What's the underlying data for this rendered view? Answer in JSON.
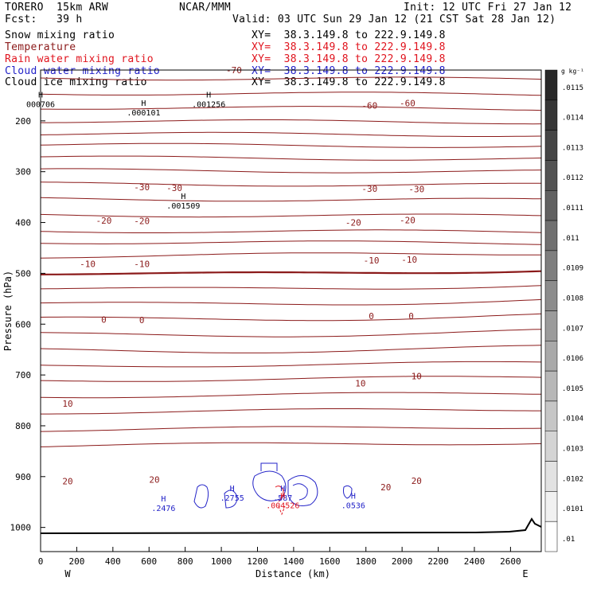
{
  "header": {
    "left1": "TORERO  15km ARW",
    "center1": "NCAR/MMM",
    "right1": "Init: 12 UTC Fri 27 Jan 12",
    "fcst": "Fcst:   39 h",
    "valid": "Valid: 03 UTC Sun 29 Jan 12 (21 CST Sat 28 Jan 12)",
    "fields": [
      {
        "label": "Snow mixing ratio",
        "color": "#000000",
        "xy": "XY=  38.3.149.8 to 222.9.149.8",
        "xy_color": "#000000"
      },
      {
        "label": "Temperature",
        "color": "#8b1a1a",
        "xy": "XY=  38.3.149.8 to 222.9.149.8",
        "xy_color": "#e0141e"
      },
      {
        "label": "Rain water mixing ratio",
        "color": "#e0141e",
        "xy": "XY=  38.3.149.8 to 222.9.149.8",
        "xy_color": "#e0141e"
      },
      {
        "label": "Cloud water mixing ratio",
        "color": "#2323c8",
        "xy": "XY=  38.3.149.8 to 222.9.149.8",
        "xy_color": "#2323c8"
      },
      {
        "label": "Cloud ice mixing ratio",
        "color": "#000000",
        "xy": "XY=  38.3.149.8 to 222.9.149.8",
        "xy_color": "#000000"
      }
    ]
  },
  "chart_data": {
    "type": "contour",
    "xlabel": "Distance (km)",
    "ylabel": "Pressure (hPa)",
    "x_ticks": [
      0,
      200,
      400,
      600,
      800,
      1000,
      1200,
      1400,
      1600,
      1800,
      2000,
      2200,
      2400,
      2600
    ],
    "y_ticks": [
      200,
      300,
      400,
      500,
      600,
      700,
      800,
      900,
      1000
    ],
    "xlim": [
      0,
      2770
    ],
    "ylim_top_hpa": 100,
    "ylim_bottom_hpa": 1050,
    "left_label": "W",
    "right_label": "E",
    "colorbar": {
      "unit": "g kg⁻¹",
      "labels": [
        ".0115",
        ".0114",
        ".0113",
        ".0112",
        ".0111",
        ".011",
        ".0109",
        ".0108",
        ".0107",
        ".0106",
        ".0105",
        ".0104",
        ".0103",
        ".0102",
        ".0101",
        ".01"
      ],
      "levels": [
        0.0115,
        0.0114,
        0.0113,
        0.0112,
        0.0111,
        0.011,
        0.0109,
        0.0108,
        0.0107,
        0.0106,
        0.0105,
        0.0104,
        0.0103,
        0.0102,
        0.0101,
        0.01
      ]
    },
    "temperature_labels": [
      {
        "text": "-70",
        "x": 1070,
        "p": 100
      },
      {
        "text": "-60",
        "x": 1820,
        "p": 170
      },
      {
        "text": "-60",
        "x": 2030,
        "p": 165
      },
      {
        "text": "-30",
        "x": 560,
        "p": 330
      },
      {
        "text": "-30",
        "x": 740,
        "p": 332
      },
      {
        "text": "-30",
        "x": 1820,
        "p": 333
      },
      {
        "text": "-30",
        "x": 2080,
        "p": 334
      },
      {
        "text": "-20",
        "x": 350,
        "p": 396
      },
      {
        "text": "-20",
        "x": 560,
        "p": 397
      },
      {
        "text": "-20",
        "x": 1730,
        "p": 400
      },
      {
        "text": "-20",
        "x": 2030,
        "p": 395
      },
      {
        "text": "-10",
        "x": 260,
        "p": 481
      },
      {
        "text": "-10",
        "x": 560,
        "p": 481
      },
      {
        "text": "-10",
        "x": 1830,
        "p": 474
      },
      {
        "text": "-10",
        "x": 2040,
        "p": 473
      },
      {
        "text": "0",
        "x": 350,
        "p": 591
      },
      {
        "text": "0",
        "x": 560,
        "p": 592
      },
      {
        "text": "0",
        "x": 1830,
        "p": 584
      },
      {
        "text": "0",
        "x": 2050,
        "p": 584
      },
      {
        "text": "10",
        "x": 1770,
        "p": 716
      },
      {
        "text": "10",
        "x": 2080,
        "p": 702
      },
      {
        "text": "10",
        "x": 150,
        "p": 756
      },
      {
        "text": "20",
        "x": 150,
        "p": 909
      },
      {
        "text": "20",
        "x": 630,
        "p": 906
      },
      {
        "text": "20",
        "x": 1910,
        "p": 921
      },
      {
        "text": "20",
        "x": 2080,
        "p": 908
      }
    ],
    "maxima": [
      {
        "label": "H",
        "value": "000706",
        "x": 0,
        "p": 160,
        "field": "cloud ice"
      },
      {
        "label": "H",
        "value": ".000101",
        "x": 570,
        "p": 177,
        "field": "cloud ice"
      },
      {
        "label": "H",
        "value": ".001256",
        "x": 930,
        "p": 160,
        "field": "cloud ice"
      },
      {
        "label": "H",
        "value": ".001509",
        "x": 790,
        "p": 360,
        "field": "cloud ice"
      },
      {
        "label": "H",
        "value": ".2476",
        "x": 680,
        "p": 955,
        "field": "cloud water"
      },
      {
        "label": "H",
        "value": ".2755",
        "x": 1060,
        "p": 935,
        "field": "cloud water"
      },
      {
        "label": "H",
        "value": ".587",
        "x": 1340,
        "p": 935,
        "field": "cloud water"
      },
      {
        "label": "H",
        "value": ".004526",
        "x": 1340,
        "p": 950,
        "field": "rain water"
      },
      {
        "label": "H",
        "value": ".0536",
        "x": 1730,
        "p": 950,
        "field": "cloud water"
      }
    ],
    "series_colors": {
      "temperature": "#8b1a1a",
      "rain_water": "#e0141e",
      "cloud_water": "#2323c8",
      "cloud_ice": "#000000",
      "terrain": "#000000"
    }
  }
}
